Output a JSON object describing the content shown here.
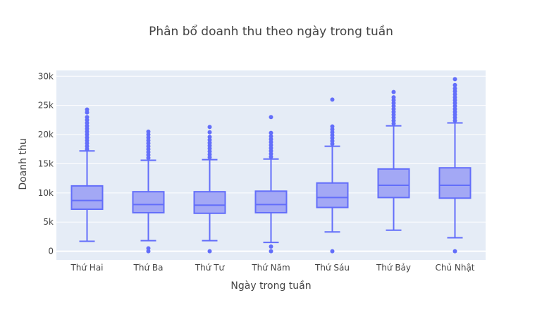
{
  "chart_data": {
    "type": "box",
    "title": "Phân bổ doanh thu theo ngày trong tuần",
    "xlabel": "Ngày trong tuần",
    "ylabel": "Doanh thu",
    "ylim": [
      -1500,
      31000
    ],
    "yticks": [
      0,
      5000,
      10000,
      15000,
      20000,
      25000,
      30000
    ],
    "ytick_labels": [
      "0",
      "5k",
      "10k",
      "15k",
      "20k",
      "25k",
      "30k"
    ],
    "grid": true,
    "legend": "none",
    "colors": {
      "box_fill": "#a3a8f5",
      "line": "#636efa",
      "plot_bg": "#e5ecf6",
      "grid": "#ffffff"
    },
    "categories": [
      "Thứ Hai",
      "Thứ Ba",
      "Thứ Tư",
      "Thứ Năm",
      "Thứ Sáu",
      "Thứ Bảy",
      "Chủ Nhật"
    ],
    "boxes": [
      {
        "min": 1700,
        "q1": 7200,
        "median": 8700,
        "q3": 11200,
        "max": 17200,
        "outliers": [
          17500,
          18000,
          18500,
          19000,
          19500,
          20000,
          20500,
          21000,
          21500,
          22000,
          22500,
          23000,
          23800,
          24300
        ]
      },
      {
        "min": 1800,
        "q1": 6600,
        "median": 8000,
        "q3": 10200,
        "max": 15600,
        "outliers": [
          0,
          500,
          16000,
          16500,
          17000,
          17500,
          18000,
          18500,
          19000,
          19500,
          20000,
          20500
        ]
      },
      {
        "min": 1800,
        "q1": 6500,
        "median": 7900,
        "q3": 10200,
        "max": 15700,
        "outliers": [
          0,
          16100,
          16600,
          17100,
          17600,
          18100,
          18600,
          19100,
          19600,
          20400,
          21300
        ]
      },
      {
        "min": 1500,
        "q1": 6600,
        "median": 8000,
        "q3": 10300,
        "max": 15800,
        "outliers": [
          0,
          800,
          16200,
          16700,
          17200,
          17700,
          18200,
          18700,
          19200,
          19700,
          20300,
          23000
        ]
      },
      {
        "min": 3300,
        "q1": 7500,
        "median": 9200,
        "q3": 11700,
        "max": 18000,
        "outliers": [
          0,
          18400,
          18900,
          19400,
          19900,
          20400,
          20900,
          21400,
          26000
        ]
      },
      {
        "min": 3600,
        "q1": 9200,
        "median": 11300,
        "q3": 14100,
        "max": 21500,
        "outliers": [
          21900,
          22400,
          22900,
          23400,
          23900,
          24400,
          24900,
          25400,
          25900,
          26400,
          27300
        ]
      },
      {
        "min": 2300,
        "q1": 9100,
        "median": 11300,
        "q3": 14300,
        "max": 22000,
        "outliers": [
          0,
          22400,
          22900,
          23400,
          23900,
          24400,
          24900,
          25400,
          25900,
          26400,
          26900,
          27400,
          27900,
          28500,
          29500
        ]
      }
    ]
  }
}
